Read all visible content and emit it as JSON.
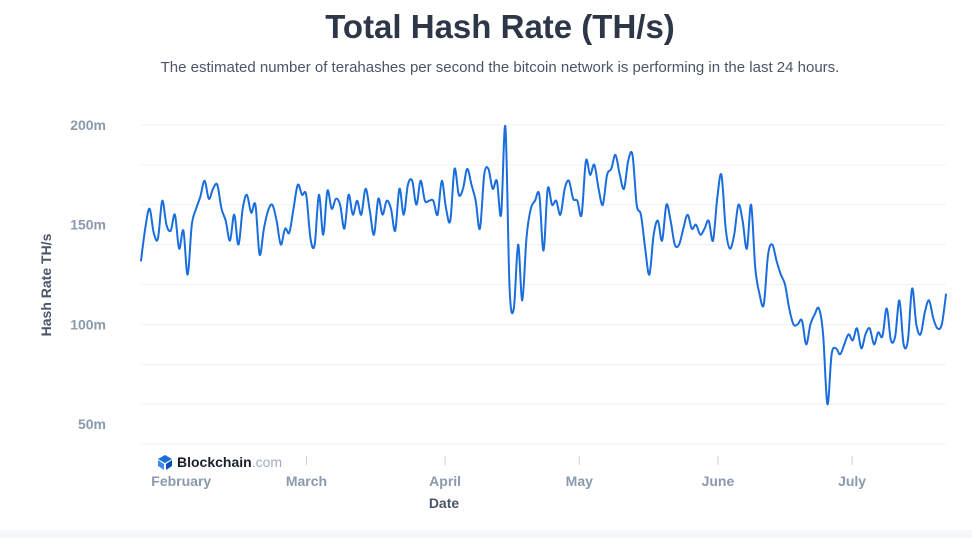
{
  "chart_data": {
    "type": "line",
    "title": "Total Hash Rate (TH/s)",
    "subtitle": "The estimated number of terahashes per second the bitcoin network is performing in the last 24 hours.",
    "xlabel": "Date",
    "ylabel": "Hash Rate TH/s",
    "ylim": [
      40000000,
      200000000
    ],
    "yticks": [
      {
        "value": 200000000,
        "label": "200m"
      },
      {
        "value": 150000000,
        "label": "150m"
      },
      {
        "value": 100000000,
        "label": "100m"
      },
      {
        "value": 50000000,
        "label": "50m"
      }
    ],
    "xticks": [
      {
        "date": "2021-02-01",
        "label": "February"
      },
      {
        "date": "2021-03-01",
        "label": "March"
      },
      {
        "date": "2021-04-01",
        "label": "April"
      },
      {
        "date": "2021-05-01",
        "label": "May"
      },
      {
        "date": "2021-06-01",
        "label": "June"
      },
      {
        "date": "2021-07-01",
        "label": "July"
      }
    ],
    "grid": true,
    "line_color": "#1a6ddc",
    "series": [
      {
        "x_start": "2021-01-23",
        "x_end": "2021-07-22",
        "values": [
          132,
          148,
          158,
          146,
          143,
          162,
          150,
          147,
          155,
          138,
          147,
          125,
          150,
          158,
          164,
          172,
          163,
          168,
          170,
          158,
          152,
          142,
          155,
          140,
          158,
          165,
          156,
          160,
          135,
          148,
          157,
          160,
          152,
          140,
          148,
          146,
          158,
          170,
          165,
          165,
          143,
          140,
          165,
          145,
          167,
          158,
          163,
          160,
          148,
          165,
          155,
          162,
          155,
          168,
          157,
          145,
          163,
          155,
          162,
          158,
          147,
          168,
          155,
          170,
          172,
          160,
          172,
          162,
          162,
          162,
          155,
          172,
          158,
          152,
          178,
          165,
          168,
          178,
          170,
          162,
          148,
          175,
          178,
          168,
          172,
          155,
          199,
          118,
          108,
          140,
          112,
          144,
          158,
          162,
          165,
          137,
          168,
          160,
          162,
          155,
          168,
          172,
          163,
          162,
          155,
          182,
          175,
          180,
          168,
          160,
          175,
          178,
          185,
          175,
          168,
          182,
          185,
          160,
          155,
          138,
          125,
          145,
          152,
          142,
          160,
          152,
          140,
          140,
          148,
          155,
          148,
          150,
          145,
          148,
          152,
          142,
          163,
          175,
          148,
          138,
          145,
          160,
          152,
          138,
          160,
          128,
          115,
          110,
          135,
          140,
          132,
          125,
          120,
          108,
          100,
          100,
          102,
          90,
          100,
          105,
          108,
          95,
          60,
          85,
          88,
          85,
          90,
          95,
          92,
          98,
          88,
          95,
          98,
          90,
          96,
          94,
          108,
          92,
          94,
          112,
          90,
          92,
          118,
          100,
          95,
          106,
          112,
          103,
          98,
          100,
          115
        ]
      }
    ],
    "y_unit_multiplier": 1000000
  },
  "branding": {
    "name": "Blockchain",
    "suffix": ".com"
  }
}
